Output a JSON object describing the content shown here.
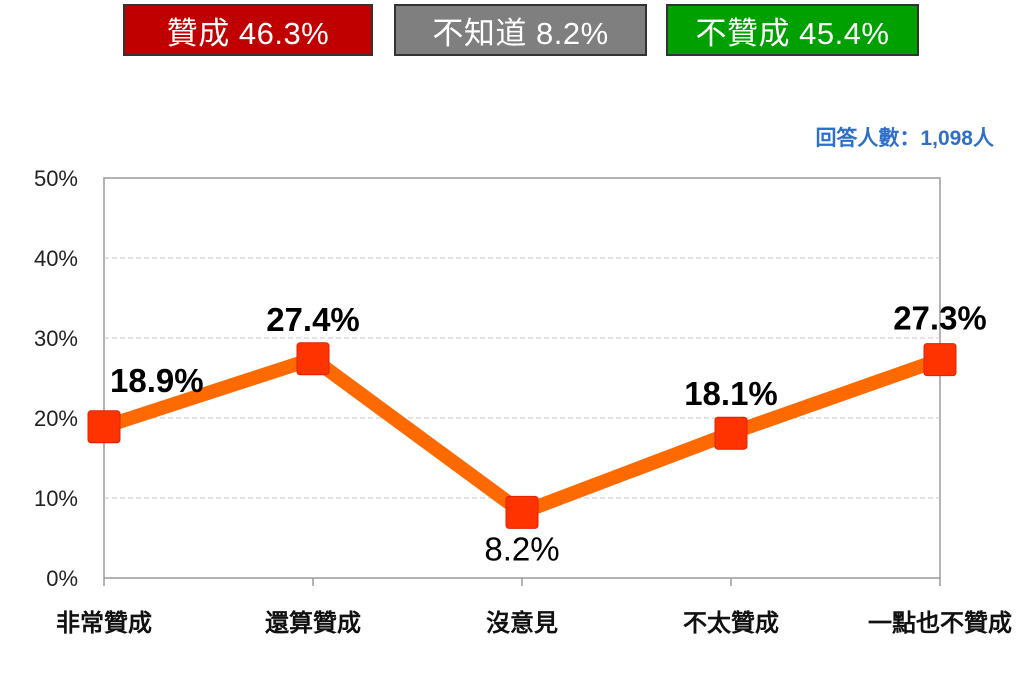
{
  "summary": {
    "agree": {
      "label": "贊成 46.3%",
      "color": "#c00000"
    },
    "unknown": {
      "label": "不知道 8.2%",
      "color": "#7f7f7f"
    },
    "disagree": {
      "label": "不贊成 45.4%",
      "color": "#00a000"
    }
  },
  "respondents": "回答人數：1,098人",
  "chart_data": {
    "type": "line",
    "categories": [
      "非常贊成",
      "還算贊成",
      "沒意見",
      "不太贊成",
      "一點也不贊成"
    ],
    "values": [
      18.9,
      27.4,
      8.2,
      18.1,
      27.3
    ],
    "data_labels": [
      "18.9%",
      "27.4%",
      "8.2%",
      "18.1%",
      "27.3%"
    ],
    "ylim": [
      0,
      50
    ],
    "yticks": [
      "0%",
      "10%",
      "20%",
      "30%",
      "40%",
      "50%"
    ],
    "grid": true,
    "line_color": "#ff6a00",
    "marker_color": "#ff3300"
  }
}
